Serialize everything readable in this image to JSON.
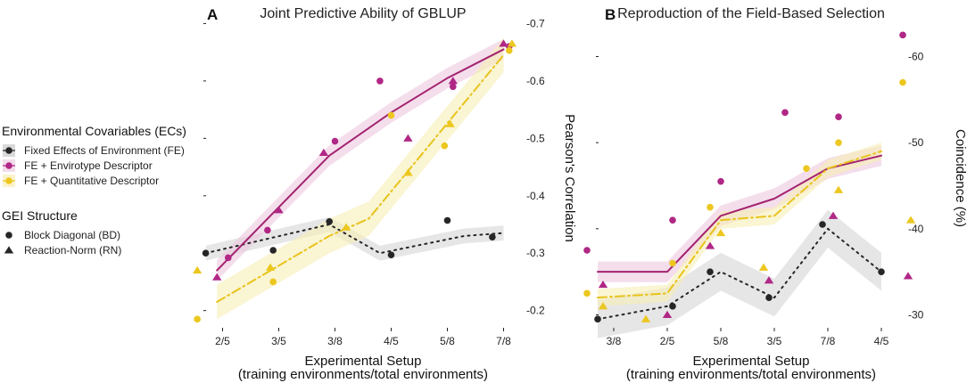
{
  "colors": {
    "fe": "#262626",
    "envirotype": "#a3236f",
    "quantitative": "#e8c31c",
    "band_fe": "#d6d6d6",
    "band_envirotype": "#ecc8e0",
    "band_quantitative": "#f7eeb4",
    "magenta_point": "#b02785",
    "yellow_point": "#ecc71f"
  },
  "legend": {
    "ecs_title": "Environmental Covariables (ECs)",
    "ecs_items": [
      {
        "label": "Fixed Effects of Environment (FE)",
        "color_key": "fe"
      },
      {
        "label": "FE + Envirotype Descriptor",
        "color_key": "magenta_point"
      },
      {
        "label": "FE + Quantitative Descriptor",
        "color_key": "yellow_point"
      }
    ],
    "gei_title": "GEI Structure",
    "gei_items": [
      {
        "label": "Block Diagonal (BD)",
        "shape": "circle"
      },
      {
        "label": "Reaction-Norm (RN)",
        "shape": "triangle"
      }
    ]
  },
  "chart_data": [
    {
      "type": "line",
      "panel": "A",
      "title": "Joint Predictive Ability of GBLUP",
      "xlabel": "Experimental Setup",
      "xlabel2": "(training environments/total environments)",
      "ylabel": "Pearson's Correlation",
      "categories": [
        "2/5",
        "3/5",
        "3/8",
        "4/5",
        "5/8",
        "7/8"
      ],
      "xlim": [
        0.5,
        6.5
      ],
      "ylim": [
        0.17,
        0.71
      ],
      "yticks": [
        0.2,
        0.3,
        0.4,
        0.5,
        0.6,
        0.7
      ],
      "ytick_labels": [
        "0.2",
        "0.3",
        "0.4",
        "0.5",
        "0.6",
        "0.7"
      ],
      "series": [
        {
          "name": "FE",
          "color_key": "fe",
          "band_key": "band_fe",
          "dash": "2,5",
          "x": [
            0.7,
            2.9,
            3.8,
            5.3,
            6.0
          ],
          "y": [
            0.3,
            0.35,
            0.3,
            0.33,
            0.335
          ],
          "band": 0.013
        },
        {
          "name": "FE + Envirotype Descriptor",
          "color_key": "envirotype",
          "band_key": "band_envirotype",
          "dash": "",
          "x": [
            0.9,
            2.9,
            4.0,
            5.0,
            6.0
          ],
          "y": [
            0.27,
            0.47,
            0.545,
            0.605,
            0.655
          ],
          "band": 0.018
        },
        {
          "name": "FE + Quantitative Descriptor",
          "color_key": "quantitative",
          "band_key": "band_quantitative",
          "dash": "10,4,2,4",
          "x": [
            0.9,
            2.9,
            3.6,
            6.0
          ],
          "y": [
            0.215,
            0.33,
            0.36,
            0.645
          ],
          "band": 0.03
        }
      ],
      "points": [
        {
          "x": 0.7,
          "y": 0.3,
          "color_key": "fe",
          "shape": "circle"
        },
        {
          "x": 1.9,
          "y": 0.305,
          "color_key": "fe",
          "shape": "circle"
        },
        {
          "x": 2.9,
          "y": 0.355,
          "color_key": "fe",
          "shape": "circle"
        },
        {
          "x": 4.0,
          "y": 0.297,
          "color_key": "fe",
          "shape": "circle"
        },
        {
          "x": 5.0,
          "y": 0.357,
          "color_key": "fe",
          "shape": "circle"
        },
        {
          "x": 5.8,
          "y": 0.328,
          "color_key": "fe",
          "shape": "circle"
        },
        {
          "x": 1.1,
          "y": 0.292,
          "color_key": "magenta_point",
          "shape": "circle"
        },
        {
          "x": 1.8,
          "y": 0.34,
          "color_key": "magenta_point",
          "shape": "circle"
        },
        {
          "x": 3.0,
          "y": 0.495,
          "color_key": "magenta_point",
          "shape": "circle"
        },
        {
          "x": 3.8,
          "y": 0.6,
          "color_key": "magenta_point",
          "shape": "circle"
        },
        {
          "x": 5.1,
          "y": 0.59,
          "color_key": "magenta_point",
          "shape": "circle"
        },
        {
          "x": 6.1,
          "y": 0.66,
          "color_key": "magenta_point",
          "shape": "circle"
        },
        {
          "x": 0.55,
          "y": 0.185,
          "color_key": "yellow_point",
          "shape": "circle"
        },
        {
          "x": 1.9,
          "y": 0.25,
          "color_key": "yellow_point",
          "shape": "circle"
        },
        {
          "x": 4.0,
          "y": 0.54,
          "color_key": "yellow_point",
          "shape": "circle"
        },
        {
          "x": 4.95,
          "y": 0.487,
          "color_key": "yellow_point",
          "shape": "circle"
        },
        {
          "x": 6.1,
          "y": 0.653,
          "color_key": "yellow_point",
          "shape": "circle"
        },
        {
          "x": 0.9,
          "y": 0.258,
          "color_key": "magenta_point",
          "shape": "triangle"
        },
        {
          "x": 2.0,
          "y": 0.375,
          "color_key": "magenta_point",
          "shape": "triangle"
        },
        {
          "x": 2.8,
          "y": 0.475,
          "color_key": "magenta_point",
          "shape": "triangle"
        },
        {
          "x": 4.3,
          "y": 0.5,
          "color_key": "magenta_point",
          "shape": "triangle"
        },
        {
          "x": 5.1,
          "y": 0.6,
          "color_key": "magenta_point",
          "shape": "triangle"
        },
        {
          "x": 6.0,
          "y": 0.665,
          "color_key": "magenta_point",
          "shape": "triangle"
        },
        {
          "x": 0.55,
          "y": 0.27,
          "color_key": "yellow_point",
          "shape": "triangle"
        },
        {
          "x": 1.85,
          "y": 0.275,
          "color_key": "yellow_point",
          "shape": "triangle"
        },
        {
          "x": 3.2,
          "y": 0.345,
          "color_key": "yellow_point",
          "shape": "triangle"
        },
        {
          "x": 4.3,
          "y": 0.44,
          "color_key": "yellow_point",
          "shape": "triangle"
        },
        {
          "x": 5.05,
          "y": 0.525,
          "color_key": "yellow_point",
          "shape": "triangle"
        },
        {
          "x": 6.15,
          "y": 0.665,
          "color_key": "yellow_point",
          "shape": "triangle"
        }
      ]
    },
    {
      "type": "line",
      "panel": "B",
      "title": "Reproduction of the Field-Based Selection",
      "xlabel": "Experimental Setup",
      "xlabel2": "(training environments/total environments)",
      "ylabel": "Coincidence (%)",
      "categories": [
        "3/8",
        "2/5",
        "5/8",
        "3/5",
        "7/8",
        "4/5"
      ],
      "xlim": [
        0.5,
        6.5
      ],
      "ylim": [
        28.5,
        64.5
      ],
      "yticks": [
        30,
        40,
        50,
        60
      ],
      "ytick_labels": [
        "30",
        "40",
        "50",
        "60"
      ],
      "series": [
        {
          "name": "FE",
          "color_key": "fe",
          "band_key": "band_fe",
          "dash": "2,5",
          "x": [
            0.7,
            2.0,
            3.0,
            4.0,
            5.0,
            6.0
          ],
          "y": [
            29.5,
            31.0,
            35.0,
            32.0,
            40.0,
            35.0
          ],
          "band": 2.2
        },
        {
          "name": "FE + Envirotype Descriptor",
          "color_key": "envirotype",
          "band_key": "band_envirotype",
          "dash": "",
          "x": [
            0.7,
            2.0,
            3.0,
            4.0,
            5.0,
            6.0
          ],
          "y": [
            35.0,
            35.0,
            41.5,
            43.5,
            47.0,
            48.5
          ],
          "band": 1.2
        },
        {
          "name": "FE + Quantitative Descriptor",
          "color_key": "quantitative",
          "band_key": "band_quantitative",
          "dash": "10,4,2,4",
          "x": [
            0.7,
            2.0,
            3.0,
            4.0,
            5.0,
            6.0
          ],
          "y": [
            32.0,
            32.5,
            41.0,
            41.5,
            47.0,
            49.0
          ],
          "band": 1.0
        }
      ],
      "points": [
        {
          "x": 0.5,
          "y": 37.5,
          "color_key": "magenta_point",
          "shape": "circle"
        },
        {
          "x": 2.1,
          "y": 41.0,
          "color_key": "magenta_point",
          "shape": "circle"
        },
        {
          "x": 3.0,
          "y": 45.5,
          "color_key": "magenta_point",
          "shape": "circle"
        },
        {
          "x": 4.2,
          "y": 53.5,
          "color_key": "magenta_point",
          "shape": "circle"
        },
        {
          "x": 5.2,
          "y": 53.0,
          "color_key": "magenta_point",
          "shape": "circle"
        },
        {
          "x": 6.4,
          "y": 62.5,
          "color_key": "magenta_point",
          "shape": "circle"
        },
        {
          "x": 0.5,
          "y": 32.5,
          "color_key": "yellow_point",
          "shape": "circle"
        },
        {
          "x": 2.1,
          "y": 36.0,
          "color_key": "yellow_point",
          "shape": "circle"
        },
        {
          "x": 2.8,
          "y": 42.5,
          "color_key": "yellow_point",
          "shape": "circle"
        },
        {
          "x": 4.6,
          "y": 47.0,
          "color_key": "yellow_point",
          "shape": "circle"
        },
        {
          "x": 5.2,
          "y": 50.0,
          "color_key": "yellow_point",
          "shape": "circle"
        },
        {
          "x": 6.4,
          "y": 57.0,
          "color_key": "yellow_point",
          "shape": "circle"
        },
        {
          "x": 0.7,
          "y": 29.5,
          "color_key": "fe",
          "shape": "circle"
        },
        {
          "x": 2.1,
          "y": 31.0,
          "color_key": "fe",
          "shape": "circle"
        },
        {
          "x": 2.8,
          "y": 35.0,
          "color_key": "fe",
          "shape": "circle"
        },
        {
          "x": 3.9,
          "y": 32.0,
          "color_key": "fe",
          "shape": "circle"
        },
        {
          "x": 4.9,
          "y": 40.5,
          "color_key": "fe",
          "shape": "circle"
        },
        {
          "x": 6.0,
          "y": 35.0,
          "color_key": "fe",
          "shape": "circle"
        },
        {
          "x": 0.8,
          "y": 33.5,
          "color_key": "magenta_point",
          "shape": "triangle"
        },
        {
          "x": 2.0,
          "y": 30.0,
          "color_key": "magenta_point",
          "shape": "triangle"
        },
        {
          "x": 2.8,
          "y": 38.0,
          "color_key": "magenta_point",
          "shape": "triangle"
        },
        {
          "x": 3.9,
          "y": 34.0,
          "color_key": "magenta_point",
          "shape": "triangle"
        },
        {
          "x": 5.1,
          "y": 41.5,
          "color_key": "magenta_point",
          "shape": "triangle"
        },
        {
          "x": 6.5,
          "y": 34.5,
          "color_key": "magenta_point",
          "shape": "triangle"
        },
        {
          "x": 0.8,
          "y": 31.0,
          "color_key": "yellow_point",
          "shape": "triangle"
        },
        {
          "x": 1.6,
          "y": 29.5,
          "color_key": "yellow_point",
          "shape": "triangle"
        },
        {
          "x": 3.0,
          "y": 39.5,
          "color_key": "yellow_point",
          "shape": "triangle"
        },
        {
          "x": 3.8,
          "y": 35.5,
          "color_key": "yellow_point",
          "shape": "triangle"
        },
        {
          "x": 5.2,
          "y": 44.5,
          "color_key": "yellow_point",
          "shape": "triangle"
        },
        {
          "x": 6.55,
          "y": 41.0,
          "color_key": "yellow_point",
          "shape": "triangle"
        }
      ]
    }
  ]
}
